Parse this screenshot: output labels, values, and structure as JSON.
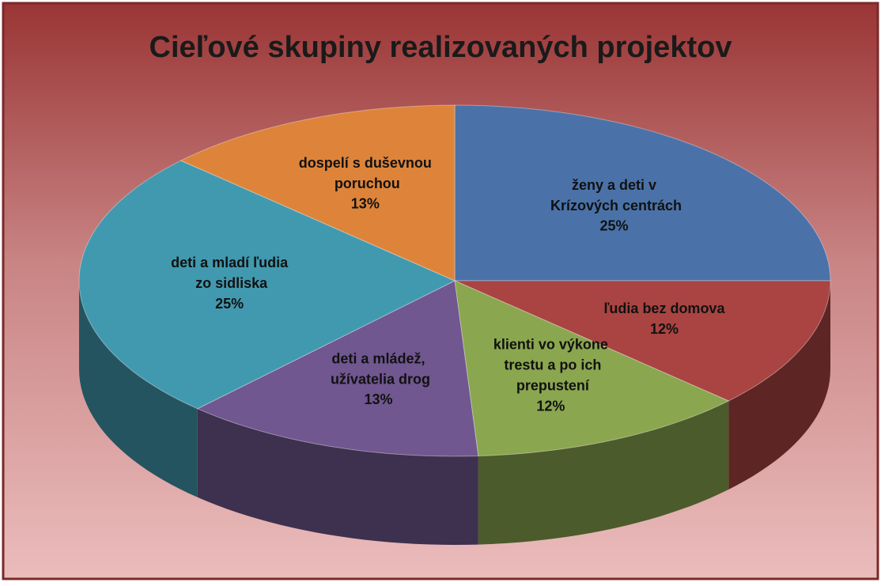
{
  "chart_data": {
    "type": "pie3d",
    "title": "Cieľové skupiny realizovaných projektov",
    "categories": [
      "ženy a deti v Krízových centrách",
      "ľudia bez domova",
      "klienti vo výkone trestu a po ich prepustení",
      "deti a mládež, užívatelia drog",
      "deti a mladí ľudia zo sidliska",
      "dospelí s duševnou poruchou"
    ],
    "values": [
      25,
      12,
      12,
      13,
      25,
      13
    ],
    "value_labels": [
      "25%",
      "12%",
      "12%",
      "13%",
      "25%",
      "13%"
    ],
    "colors": [
      "#4a72a8",
      "#a94442",
      "#8aa64f",
      "#70578f",
      "#4199af",
      "#dd843a"
    ]
  }
}
